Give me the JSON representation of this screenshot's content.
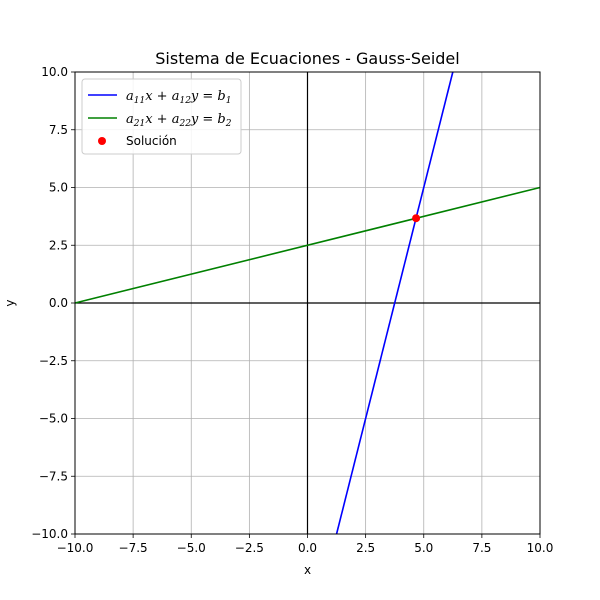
{
  "chart_data": {
    "type": "line",
    "title": "Sistema de Ecuaciones - Gauss-Seidel",
    "xlabel": "x",
    "ylabel": "y",
    "xlim": [
      -10,
      10
    ],
    "ylim": [
      -10,
      10
    ],
    "x_ticks": [
      -10,
      -7.5,
      -5,
      -2.5,
      0,
      2.5,
      5,
      7.5,
      10
    ],
    "y_ticks": [
      -10,
      -7.5,
      -5,
      -2.5,
      0,
      2.5,
      5,
      7.5,
      10
    ],
    "x_tick_labels": [
      "−10.0",
      "−7.5",
      "−5.0",
      "−2.5",
      "0.0",
      "2.5",
      "5.0",
      "7.5",
      "10.0"
    ],
    "y_tick_labels": [
      "−10.0",
      "−7.5",
      "−5.0",
      "−2.5",
      "0.0",
      "2.5",
      "5.0",
      "7.5",
      "10.0"
    ],
    "grid": true,
    "legend_position": "upper-left",
    "series": [
      {
        "name": "a11x + a12y = b1",
        "label_parts": [
          "a",
          "11",
          "x + a",
          "12",
          "y = b",
          "1"
        ],
        "color": "#0000ff",
        "x": [
          1.25,
          6.25
        ],
        "y": [
          -10,
          10
        ]
      },
      {
        "name": "a21x + a22y = b2",
        "label_parts": [
          "a",
          "21",
          "x + a",
          "22",
          "y = b",
          "2"
        ],
        "color": "#008000",
        "x": [
          -10,
          10
        ],
        "y": [
          0,
          5
        ]
      }
    ],
    "solution": {
      "name": "Solución",
      "color": "#ff0000",
      "x": 4.67,
      "y": 3.67
    }
  }
}
